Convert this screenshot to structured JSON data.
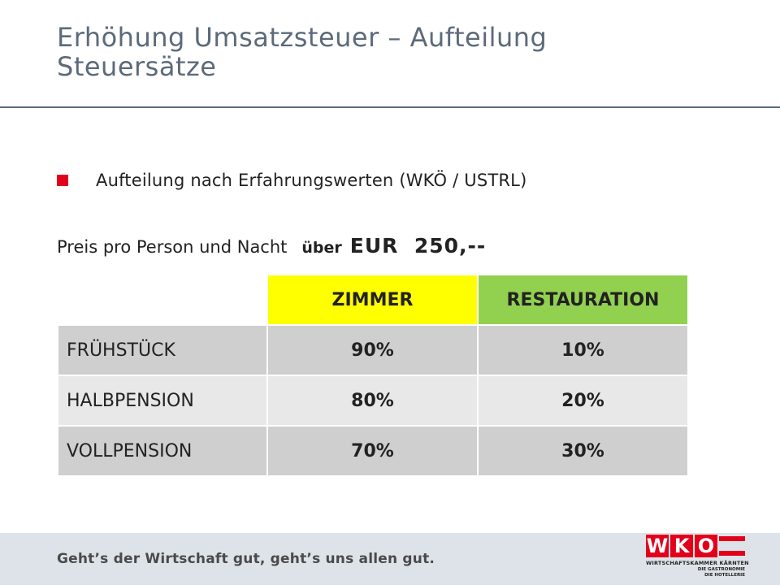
{
  "slide": {
    "title_line1": "Erhöhung Umsatzsteuer – Aufteilung",
    "title_line2": "Steuersätze",
    "bullet": "Aufteilung nach Erfahrungswerten (WKÖ / USTRL)",
    "price_prefix": "Preis pro Person und Nacht",
    "price_over": "über",
    "price_amount": "EUR  250,--"
  },
  "table": {
    "headers": [
      "",
      "ZIMMER",
      "RESTAURATION"
    ],
    "rows": [
      {
        "label": "FRÜHSTÜCK",
        "zimmer": "90%",
        "restauration": "10%"
      },
      {
        "label": "HALBPENSION",
        "zimmer": "80%",
        "restauration": "20%"
      },
      {
        "label": "VOLLPENSION",
        "zimmer": "70%",
        "restauration": "30%"
      }
    ],
    "colors": {
      "zimmer_header": "#ffff00",
      "restauration_header": "#92d050"
    }
  },
  "footer": {
    "slogan": "Geht’s der Wirtschaft gut, geht’s uns allen gut.",
    "logo_letters": [
      "W",
      "K",
      "O"
    ],
    "logo_line1": "WIRTSCHAFTSKAMMER KÄRNTEN",
    "logo_line2": "DIE GASTRONOMIE",
    "logo_line3": "DIE HOTELLERIE",
    "brand_color": "#e3001b"
  }
}
